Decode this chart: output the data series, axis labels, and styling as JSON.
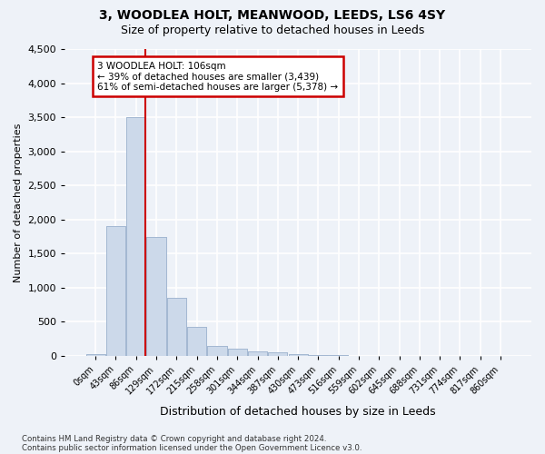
{
  "title": "3, WOODLEA HOLT, MEANWOOD, LEEDS, LS6 4SY",
  "subtitle": "Size of property relative to detached houses in Leeds",
  "xlabel": "Distribution of detached houses by size in Leeds",
  "ylabel": "Number of detached properties",
  "bar_color": "#ccd9ea",
  "bar_edge_color": "#9ab0cc",
  "background_color": "#eef2f8",
  "grid_color": "#ffffff",
  "categories": [
    "0sqm",
    "43sqm",
    "86sqm",
    "129sqm",
    "172sqm",
    "215sqm",
    "258sqm",
    "301sqm",
    "344sqm",
    "387sqm",
    "430sqm",
    "473sqm",
    "516sqm",
    "559sqm",
    "602sqm",
    "645sqm",
    "688sqm",
    "731sqm",
    "774sqm",
    "817sqm",
    "860sqm"
  ],
  "values": [
    30,
    1900,
    3500,
    1750,
    850,
    430,
    150,
    100,
    70,
    50,
    30,
    15,
    8,
    5,
    3,
    2,
    2,
    1,
    1,
    1,
    1
  ],
  "ylim": [
    0,
    4500
  ],
  "yticks": [
    0,
    500,
    1000,
    1500,
    2000,
    2500,
    3000,
    3500,
    4000,
    4500
  ],
  "vline_x": 2.47,
  "annotation_text": "3 WOODLEA HOLT: 106sqm\n← 39% of detached houses are smaller (3,439)\n61% of semi-detached houses are larger (5,378) →",
  "annotation_box_color": "#ffffff",
  "annotation_border_color": "#cc0000",
  "vline_color": "#cc0000",
  "footer_line1": "Contains HM Land Registry data © Crown copyright and database right 2024.",
  "footer_line2": "Contains public sector information licensed under the Open Government Licence v3.0."
}
